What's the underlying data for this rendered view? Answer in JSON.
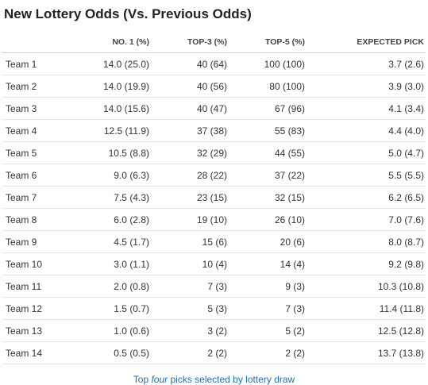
{
  "title": "New Lottery Odds (Vs. Previous Odds)",
  "table": {
    "headers": [
      "",
      "NO. 1 (%)",
      "TOP-3 (%)",
      "TOP-5 (%)",
      "EXPECTED PICK"
    ],
    "rows": [
      [
        "Team 1",
        "14.0 (25.0)",
        "40 (64)",
        "100 (100)",
        "3.7 (2.6)"
      ],
      [
        "Team 2",
        "14.0 (19.9)",
        "40 (56)",
        "80 (100)",
        "3.9 (3.0)"
      ],
      [
        "Team 3",
        "14.0 (15.6)",
        "40 (47)",
        "67 (96)",
        "4.1 (3.4)"
      ],
      [
        "Team 4",
        "12.5 (11.9)",
        "37 (38)",
        "55 (83)",
        "4.4 (4.0)"
      ],
      [
        "Team 5",
        "10.5 (8.8)",
        "32 (29)",
        "44 (55)",
        "5.0 (4.7)"
      ],
      [
        "Team 6",
        "9.0 (6.3)",
        "28 (22)",
        "37 (22)",
        "5.5 (5.5)"
      ],
      [
        "Team 7",
        "7.5 (4.3)",
        "23 (15)",
        "32 (15)",
        "6.2 (6.5)"
      ],
      [
        "Team 8",
        "6.0 (2.8)",
        "19 (10)",
        "26 (10)",
        "7.0 (7.6)"
      ],
      [
        "Team 9",
        "4.5 (1.7)",
        "15 (6)",
        "20 (6)",
        "8.0 (8.7)"
      ],
      [
        "Team 10",
        "3.0 (1.1)",
        "10 (4)",
        "14 (4)",
        "9.2 (9.8)"
      ],
      [
        "Team 11",
        "2.0 (0.8)",
        "7 (3)",
        "9 (3)",
        "10.3 (10.8)"
      ],
      [
        "Team 12",
        "1.5 (0.7)",
        "5 (3)",
        "7 (3)",
        "11.4 (11.8)"
      ],
      [
        "Team 13",
        "1.0 (0.6)",
        "3 (2)",
        "5 (2)",
        "12.5 (12.8)"
      ],
      [
        "Team 14",
        "0.5 (0.5)",
        "2 (2)",
        "2 (2)",
        "13.7 (13.8)"
      ]
    ]
  },
  "footnote": {
    "before": "Top ",
    "emphasis": "four",
    "after": " picks selected by lottery draw"
  },
  "colors": {
    "title": "#222222",
    "text": "#333333",
    "footnote_link": "#1f6fb3",
    "row_divider": "#e3e3e3"
  }
}
